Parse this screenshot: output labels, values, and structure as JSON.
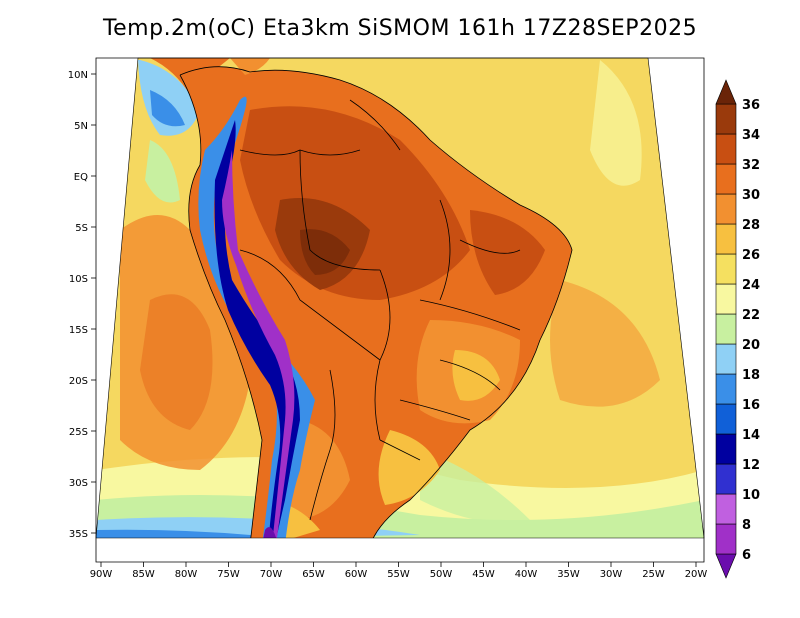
{
  "title": "Temp.2m(oC) Eta3km SiSMOM 161h 17Z28SEP2025",
  "map": {
    "variable": "2 m temperature",
    "units": "oC",
    "region": "South America",
    "lat_ticks": [
      "10N",
      "5N",
      "EQ",
      "5S",
      "10S",
      "15S",
      "20S",
      "25S",
      "30S",
      "35S"
    ],
    "lon_ticks": [
      "90W",
      "85W",
      "80W",
      "75W",
      "70W",
      "65W",
      "60W",
      "55W",
      "50W",
      "45W",
      "40W",
      "35W",
      "30W",
      "25W",
      "20W"
    ]
  },
  "colorbar": {
    "levels": [
      "6",
      "8",
      "10",
      "12",
      "14",
      "16",
      "18",
      "20",
      "22",
      "24",
      "26",
      "28",
      "30",
      "32",
      "34",
      "36"
    ],
    "colors": [
      "#6a0dad",
      "#a030c8",
      "#c060e0",
      "#3030d0",
      "#0000a0",
      "#1060d8",
      "#3a8fe8",
      "#8fd0f5",
      "#c8f0a0",
      "#f8f8a0",
      "#f5e060",
      "#f7c040",
      "#f29030",
      "#e86f1e",
      "#c84f12",
      "#9a3a0c",
      "#6a2408"
    ]
  }
}
